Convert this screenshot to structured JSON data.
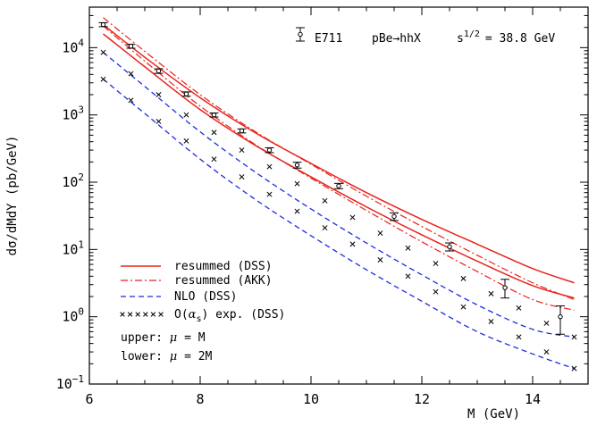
{
  "chart_data": {
    "type": "line",
    "title": "",
    "xlabel": "M (GeV)",
    "ylabel": "dσ/dMdY (pb/GeV)",
    "xlim": [
      6,
      15
    ],
    "ylim": [
      0.1,
      40000
    ],
    "yscale": "log",
    "x_ticks": [
      "6",
      "8",
      "10",
      "12",
      "14"
    ],
    "y_ticks": [
      {
        "mantissa": "10",
        "exp": "−1",
        "value": 0.1
      },
      {
        "mantissa": "10",
        "exp": "0",
        "value": 1
      },
      {
        "mantissa": "10",
        "exp": "1",
        "value": 10
      },
      {
        "mantissa": "10",
        "exp": "2",
        "value": 100
      },
      {
        "mantissa": "10",
        "exp": "3",
        "value": 1000
      },
      {
        "mantissa": "10",
        "exp": "4",
        "value": 10000
      }
    ],
    "annotation": {
      "experiment": "E711",
      "process": "pBe→hhX",
      "energy_prefix": "s",
      "energy_exp": "1/2",
      "energy_value": "= 38.8 GeV"
    },
    "legend": [
      {
        "label": "resummed (DSS)",
        "style": "solid-red"
      },
      {
        "label": "resummed (AKK)",
        "style": "dashdot-red"
      },
      {
        "label": "NLO (DSS)",
        "style": "dashed-blue"
      },
      {
        "label_pre": "O(",
        "label_greek": "α",
        "label_sub": "s",
        "label_post": ") exp. (DSS)",
        "style": "cross-markers"
      }
    ],
    "notes": [
      {
        "label": "upper: ",
        "greek": "μ",
        "rest": " = M"
      },
      {
        "label": "lower: ",
        "greek": "μ",
        "rest": " = 2M"
      }
    ],
    "colors": {
      "red": "#e8231c",
      "blue": "#1d2be0",
      "black": "#000000"
    },
    "series": [
      {
        "style": "solid-red",
        "x": [
          6.25,
          7,
          8,
          9,
          10,
          11,
          12,
          13,
          14,
          14.75
        ],
        "y": [
          22000,
          7200,
          1800,
          540,
          190,
          70,
          28,
          12,
          5.2,
          3.2
        ]
      },
      {
        "style": "solid-red",
        "x": [
          6.25,
          7,
          8,
          9,
          10,
          11,
          12,
          13,
          14,
          14.75
        ],
        "y": [
          16000,
          5200,
          1200,
          350,
          120,
          43,
          16.5,
          6.7,
          2.9,
          1.9
        ]
      },
      {
        "style": "dashdot-red",
        "x": [
          6.25,
          7,
          8,
          9,
          10,
          11,
          12,
          13,
          14,
          14.75
        ],
        "y": [
          28000,
          8800,
          2000,
          560,
          185,
          62,
          22,
          8.2,
          3.2,
          1.8
        ]
      },
      {
        "style": "dashdot-red",
        "x": [
          6.25,
          7,
          8,
          9,
          10,
          11,
          12,
          13,
          14,
          14.75
        ],
        "y": [
          21000,
          6300,
          1350,
          360,
          115,
          38,
          13,
          4.7,
          1.8,
          1.25
        ]
      },
      {
        "style": "dashed-blue",
        "x": [
          6.25,
          7,
          8,
          9,
          10,
          11,
          12,
          13,
          14,
          14.75
        ],
        "y": [
          8500,
          2650,
          560,
          140,
          40,
          12.5,
          4.2,
          1.5,
          0.65,
          0.5
        ]
      },
      {
        "style": "dashed-blue",
        "x": [
          6.25,
          7,
          8,
          9,
          10,
          11,
          12,
          13,
          14,
          14.75
        ],
        "y": [
          3400,
          1050,
          220,
          55,
          16,
          5,
          1.7,
          0.6,
          0.28,
          0.17
        ]
      },
      {
        "style": "cross-markers",
        "x": [
          6.25,
          6.75,
          7.25,
          7.75,
          8.25,
          8.75,
          9.25,
          9.75,
          10.25,
          10.75,
          11.25,
          11.75,
          12.25,
          12.75,
          13.25,
          13.75,
          14.25,
          14.75
        ],
        "y": [
          8500,
          4100,
          2000,
          1000,
          550,
          300,
          170,
          95,
          53,
          30,
          17.5,
          10.5,
          6.2,
          3.7,
          2.2,
          1.35,
          0.8,
          0.5
        ]
      },
      {
        "style": "cross-markers",
        "x": [
          6.25,
          6.75,
          7.25,
          7.75,
          8.25,
          8.75,
          9.25,
          9.75,
          10.25,
          10.75,
          11.25,
          11.75,
          12.25,
          12.75,
          13.25,
          13.75,
          14.25,
          14.75
        ],
        "y": [
          3400,
          1650,
          800,
          410,
          220,
          120,
          66,
          37,
          21,
          12,
          7,
          4,
          2.35,
          1.4,
          0.85,
          0.5,
          0.3,
          0.17
        ]
      },
      {
        "style": "data-points",
        "name": "E711",
        "x": [
          6.25,
          6.75,
          7.25,
          7.75,
          8.25,
          8.75,
          9.25,
          9.75,
          10.5,
          11.5,
          12.5,
          13.5,
          14.5
        ],
        "y": [
          22000,
          10500,
          4500,
          2050,
          1000,
          580,
          300,
          180,
          88,
          31,
          11,
          2.7,
          1.0
        ],
        "y_low": [
          20500,
          9800,
          4150,
          1900,
          930,
          540,
          275,
          162,
          80,
          27,
          9.5,
          1.9,
          0.55
        ],
        "y_high": [
          23500,
          11200,
          4850,
          2200,
          1070,
          620,
          325,
          198,
          96,
          35,
          12.5,
          3.6,
          1.45
        ]
      }
    ]
  }
}
